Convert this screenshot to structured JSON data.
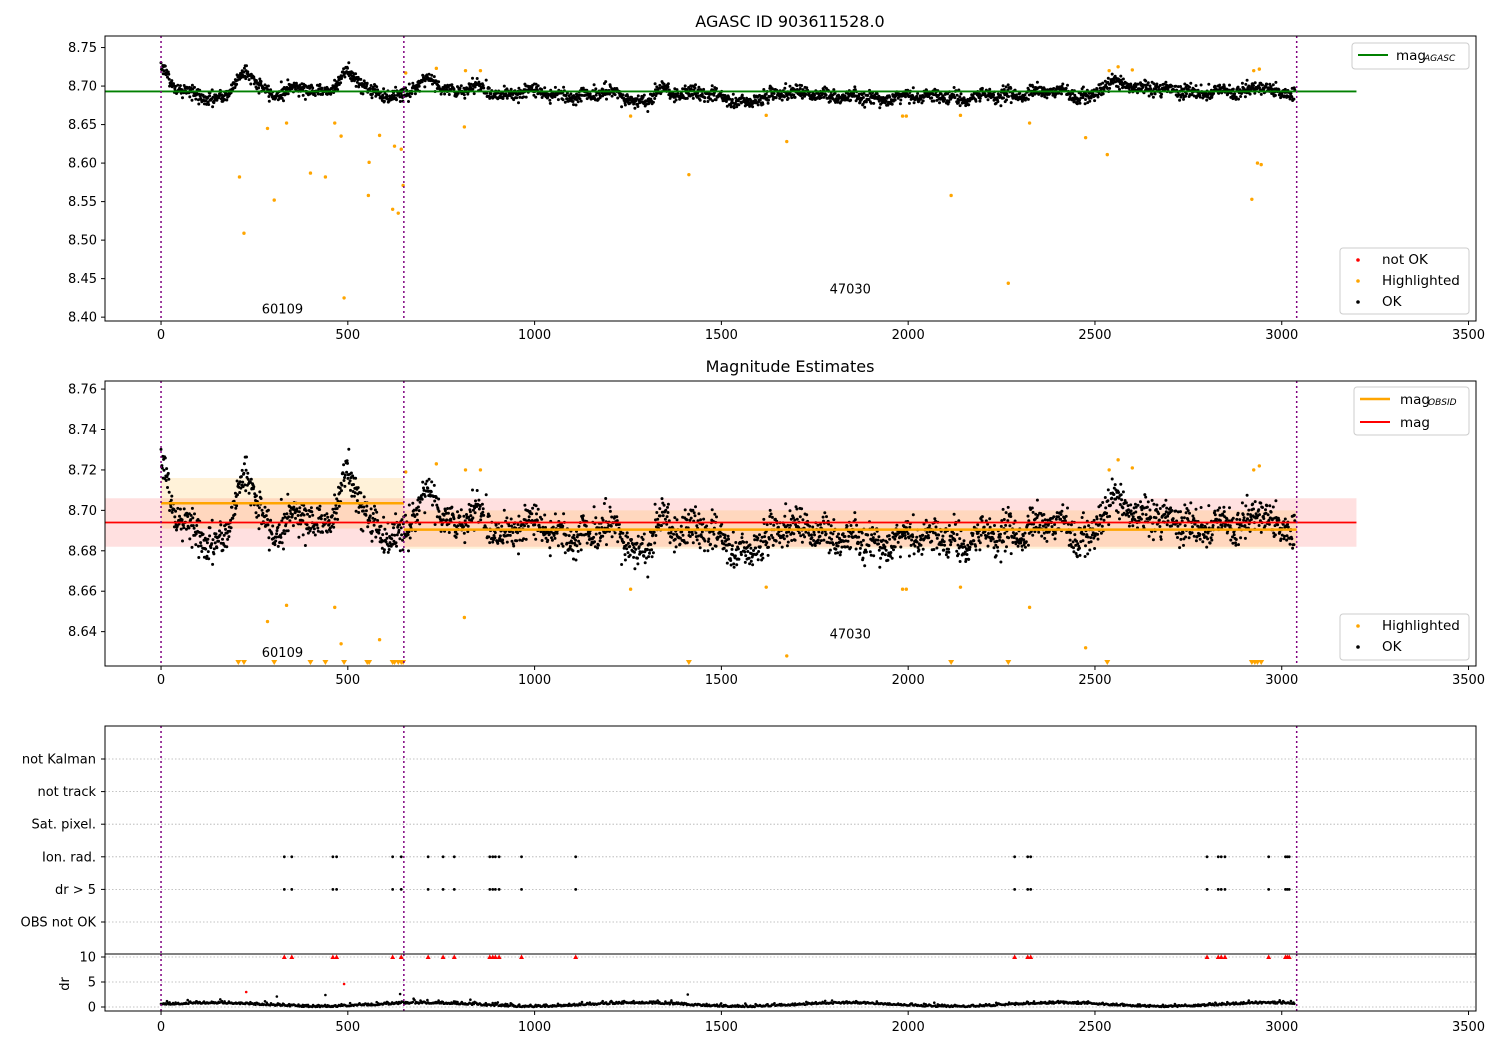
{
  "chart_data": [
    {
      "type": "scatter",
      "title": "AGASC ID 903611528.0",
      "ylim": [
        8.395,
        8.765
      ],
      "xlim": [
        -150,
        3520
      ],
      "yticks": [
        "8.40",
        "8.45",
        "8.50",
        "8.55",
        "8.60",
        "8.65",
        "8.70",
        "8.75"
      ],
      "xticks": [
        "0",
        "500",
        "1000",
        "1500",
        "2000",
        "2500",
        "3000",
        "3500"
      ],
      "obsid_boundaries": [
        0,
        650,
        3040
      ],
      "obsid_labels": [
        {
          "text": "60109",
          "x": 325,
          "y": 8.41
        },
        {
          "text": "47030",
          "x": 1845,
          "y": 8.436
        }
      ],
      "reference_line": {
        "name": "mag",
        "sub": "AGASC",
        "value": 8.693,
        "x_range": [
          -150,
          3200
        ],
        "color": "#008000"
      },
      "legend_upper": [
        {
          "name": "mag",
          "sub": "AGASC",
          "color": "#008000",
          "kind": "line"
        }
      ],
      "legend_lower": [
        {
          "name": "not OK",
          "color": "#ff0000",
          "kind": "dot"
        },
        {
          "name": "Highlighted",
          "color": "#ffa500",
          "kind": "dot"
        },
        {
          "name": "OK",
          "color": "#000000",
          "kind": "dot"
        }
      ],
      "highlighted_points": [
        [
          210,
          8.582
        ],
        [
          222,
          8.509
        ],
        [
          285,
          8.645
        ],
        [
          303,
          8.552
        ],
        [
          336,
          8.652
        ],
        [
          400,
          8.587
        ],
        [
          440,
          8.582
        ],
        [
          465,
          8.652
        ],
        [
          482,
          8.635
        ],
        [
          490,
          8.425
        ],
        [
          555,
          8.558
        ],
        [
          557,
          8.601
        ],
        [
          585,
          8.636
        ],
        [
          620,
          8.54
        ],
        [
          625,
          8.622
        ],
        [
          635,
          8.535
        ],
        [
          643,
          8.618
        ],
        [
          648,
          8.571
        ],
        [
          655,
          8.717
        ],
        [
          737,
          8.723
        ],
        [
          812,
          8.647
        ],
        [
          815,
          8.72
        ],
        [
          855,
          8.72
        ],
        [
          1257,
          8.661
        ],
        [
          1413,
          8.585
        ],
        [
          1620,
          8.662
        ],
        [
          1675,
          8.628
        ],
        [
          1985,
          8.661
        ],
        [
          1995,
          8.661
        ],
        [
          2115,
          8.558
        ],
        [
          2140,
          8.662
        ],
        [
          2268,
          8.444
        ],
        [
          2325,
          8.652
        ],
        [
          2475,
          8.633
        ],
        [
          2533,
          8.611
        ],
        [
          2538,
          8.72
        ],
        [
          2562,
          8.725
        ],
        [
          2600,
          8.721
        ],
        [
          2920,
          8.553
        ],
        [
          2925,
          8.72
        ],
        [
          2935,
          8.6
        ],
        [
          2940,
          8.722
        ],
        [
          2945,
          8.598
        ]
      ]
    },
    {
      "type": "scatter",
      "title": "Magnitude Estimates",
      "ylim": [
        8.623,
        8.764
      ],
      "xlim": [
        -150,
        3520
      ],
      "yticks": [
        "8.64",
        "8.66",
        "8.68",
        "8.70",
        "8.72",
        "8.74",
        "8.76"
      ],
      "xticks": [
        "0",
        "500",
        "1000",
        "1500",
        "2000",
        "2500",
        "3000",
        "3500"
      ],
      "obsid_boundaries": [
        0,
        650,
        3040
      ],
      "obsid_labels": [
        {
          "text": "60109",
          "x": 325,
          "y": 8.6294
        },
        {
          "text": "47030",
          "x": 1845,
          "y": 8.6385
        }
      ],
      "mean_mag": {
        "name": "mag",
        "value": 8.694,
        "band": [
          8.682,
          8.706
        ],
        "x_range": [
          -150,
          3200
        ],
        "color": "#ff0000"
      },
      "obsid_mag": [
        {
          "name": "mag",
          "sub": "OBSID",
          "x_range": [
            0,
            650
          ],
          "value": 8.7035,
          "band": [
            8.691,
            8.716
          ],
          "color": "#ffa500"
        },
        {
          "name": "mag",
          "sub": "OBSID",
          "x_range": [
            650,
            3040
          ],
          "value": 8.6905,
          "band": [
            8.681,
            8.7
          ],
          "color": "#ffa500"
        }
      ],
      "legend_upper": [
        {
          "name": "mag",
          "sub": "OBSID",
          "color": "#ffa500",
          "kind": "line"
        },
        {
          "name": "mag",
          "color": "#ff0000",
          "kind": "line"
        }
      ],
      "legend_lower": [
        {
          "name": "Highlighted",
          "color": "#ffa500",
          "kind": "dot"
        },
        {
          "name": "OK",
          "color": "#000000",
          "kind": "dot"
        }
      ],
      "highlighted_points": [
        [
          285,
          8.645
        ],
        [
          336,
          8.653
        ],
        [
          465,
          8.652
        ],
        [
          482,
          8.634
        ],
        [
          585,
          8.636
        ],
        [
          655,
          8.719
        ],
        [
          737,
          8.723
        ],
        [
          812,
          8.647
        ],
        [
          815,
          8.72
        ],
        [
          855,
          8.72
        ],
        [
          1257,
          8.661
        ],
        [
          1620,
          8.662
        ],
        [
          1675,
          8.628
        ],
        [
          1985,
          8.661
        ],
        [
          1995,
          8.661
        ],
        [
          2140,
          8.662
        ],
        [
          2325,
          8.652
        ],
        [
          2475,
          8.632
        ],
        [
          2538,
          8.72
        ],
        [
          2562,
          8.725
        ],
        [
          2600,
          8.721
        ],
        [
          2925,
          8.72
        ],
        [
          2940,
          8.722
        ]
      ],
      "clipped_markers_x": [
        207,
        222,
        303,
        400,
        440,
        490,
        552,
        557,
        620,
        625,
        635,
        643,
        648,
        1413,
        2115,
        2268,
        2533,
        2920,
        2928,
        2935,
        2945
      ]
    },
    {
      "type": "scatter",
      "title": "",
      "categories": [
        "not Kalman",
        "not track",
        "Sat. pixel.",
        "Ion. rad.",
        "dr > 5",
        "OBS not OK"
      ],
      "xticks": [
        "0",
        "500",
        "1000",
        "1500",
        "2000",
        "2500",
        "3000",
        "3500"
      ],
      "xlim": [
        -150,
        3520
      ],
      "obsid_boundaries": [
        0,
        650,
        3040
      ],
      "flag_times": [
        {
          "category": "Ion. rad.",
          "x": [
            330,
            350,
            460,
            470,
            620,
            643,
            715,
            755,
            785,
            880,
            888,
            895,
            905,
            965,
            1110,
            2285,
            2320,
            2328,
            2800,
            2830,
            2838,
            2848,
            2965,
            3010,
            3015,
            3020
          ]
        },
        {
          "category": "dr > 5",
          "x": [
            330,
            350,
            460,
            470,
            620,
            643,
            715,
            755,
            785,
            880,
            888,
            895,
            905,
            965,
            1110,
            2285,
            2320,
            2328,
            2800,
            2830,
            2838,
            2848,
            2965,
            3010,
            3015,
            3020
          ]
        }
      ]
    },
    {
      "type": "scatter",
      "ylabel": "dr",
      "ylim": [
        -0.8,
        10.6
      ],
      "yticks": [
        "0",
        "5",
        "10"
      ],
      "xlim": [
        -150,
        3520
      ],
      "xticks": [
        "0",
        "500",
        "1000",
        "1500",
        "2000",
        "2500",
        "3000",
        "3500"
      ],
      "obsid_boundaries": [
        0,
        650,
        3040
      ],
      "clipped_at": 10,
      "clipped_x": [
        330,
        350,
        460,
        470,
        620,
        643,
        715,
        755,
        785,
        880,
        888,
        895,
        905,
        965,
        1110,
        2285,
        2320,
        2328,
        2800,
        2830,
        2838,
        2848,
        2965,
        3010,
        3015,
        3020
      ],
      "notable_points": [
        {
          "x": 228,
          "y": 3.0,
          "color": "#ff0000"
        },
        {
          "x": 490,
          "y": 4.6,
          "color": "#ff0000"
        },
        {
          "x": 310,
          "y": 2.1,
          "color": "#000000"
        },
        {
          "x": 440,
          "y": 2.4,
          "color": "#000000"
        },
        {
          "x": 640,
          "y": 2.6,
          "color": "#000000"
        },
        {
          "x": 1410,
          "y": 2.5,
          "color": "#000000"
        }
      ]
    }
  ]
}
